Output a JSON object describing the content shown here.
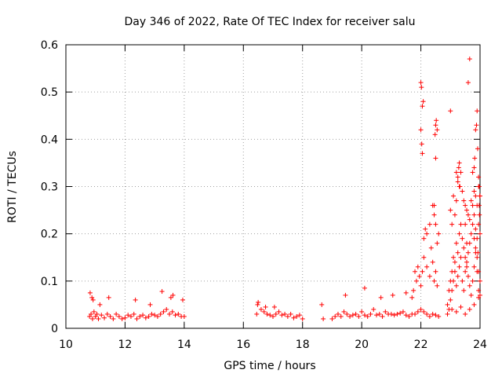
{
  "chart_data": {
    "type": "scatter",
    "title": "Day 346 of 2022, Rate Of TEC Index for receiver salu",
    "xlabel": "GPS time / hours",
    "ylabel": "ROTI / TECUs",
    "xlim": [
      10,
      24
    ],
    "ylim": [
      0,
      0.6
    ],
    "xticks": [
      10,
      12,
      14,
      16,
      18,
      20,
      22,
      24
    ],
    "yticks": [
      0,
      0.1,
      0.2,
      0.3,
      0.4,
      0.5,
      0.6
    ],
    "xtick_labels": [
      "10",
      "12",
      "14",
      "16",
      "18",
      "20",
      "22",
      "24"
    ],
    "ytick_labels": [
      "0",
      "0.1",
      "0.2",
      "0.3",
      "0.4",
      "0.5",
      "0.6"
    ],
    "grid": true,
    "marker": "+",
    "series": [
      {
        "name": "ROTI",
        "color": "#ff0000",
        "x": [
          10.8,
          10.85,
          10.9,
          10.95,
          11.0,
          11.05,
          11.1,
          11.2,
          11.3,
          11.4,
          11.5,
          11.6,
          11.7,
          11.8,
          11.9,
          12.0,
          12.1,
          12.2,
          12.3,
          12.4,
          12.5,
          12.6,
          12.7,
          12.8,
          12.9,
          13.0,
          13.1,
          13.2,
          13.3,
          13.4,
          13.5,
          13.6,
          13.7,
          13.8,
          13.9,
          14.0,
          10.82,
          10.88,
          10.92,
          11.15,
          11.45,
          12.35,
          12.85,
          13.25,
          13.55,
          13.62,
          13.95,
          16.45,
          16.5,
          16.6,
          16.7,
          16.8,
          16.9,
          17.0,
          17.1,
          17.2,
          17.3,
          17.4,
          17.5,
          17.6,
          17.7,
          17.8,
          17.9,
          18.0,
          16.48,
          16.75,
          17.05,
          18.65,
          18.7,
          19.0,
          19.1,
          19.2,
          19.3,
          19.4,
          19.5,
          19.6,
          19.7,
          19.8,
          19.9,
          20.0,
          20.1,
          20.2,
          20.3,
          20.4,
          20.5,
          20.6,
          20.7,
          20.8,
          20.9,
          21.0,
          21.1,
          21.2,
          21.3,
          21.4,
          21.5,
          21.6,
          21.7,
          21.8,
          21.9,
          22.0,
          22.1,
          22.2,
          22.3,
          22.4,
          22.5,
          22.6,
          19.45,
          20.1,
          20.65,
          21.05,
          21.5,
          21.7,
          21.75,
          21.8,
          21.85,
          21.9,
          21.95,
          22.0,
          22.05,
          22.1,
          22.2,
          22.3,
          22.4,
          22.45,
          22.5,
          22.55,
          22.0,
          22.02,
          22.05,
          22.08,
          22.0,
          22.03,
          22.05,
          22.5,
          22.52,
          22.55,
          22.5,
          22.48,
          22.45,
          22.4,
          22.45,
          22.5,
          22.55,
          22.6,
          22.2,
          22.3,
          22.35,
          22.1,
          22.15,
          22.9,
          22.95,
          23.0,
          23.05,
          23.1,
          23.15,
          23.2,
          23.25,
          23.3,
          23.35,
          23.4,
          23.45,
          23.5,
          23.55,
          23.6,
          23.65,
          23.7,
          23.75,
          23.8,
          23.85,
          23.9,
          23.95,
          24.0,
          22.95,
          23.0,
          23.05,
          23.1,
          23.15,
          23.2,
          23.25,
          23.3,
          23.35,
          23.4,
          23.45,
          23.5,
          23.55,
          23.6,
          23.65,
          23.7,
          23.75,
          23.8,
          23.85,
          23.9,
          23.95,
          24.0,
          23.0,
          23.1,
          23.2,
          23.3,
          23.4,
          23.5,
          23.6,
          23.7,
          23.8,
          23.9,
          24.0,
          23.05,
          23.15,
          23.25,
          23.35,
          23.45,
          23.55,
          23.65,
          23.75,
          23.85,
          23.95,
          23.0,
          23.2,
          23.3,
          23.25,
          23.28,
          23.32,
          23.6,
          23.65,
          23.75,
          23.8,
          23.82,
          23.85,
          23.9,
          23.88,
          23.92,
          23.95,
          23.97,
          23.99,
          23.5,
          23.55,
          23.8,
          23.85,
          23.9,
          23.95,
          23.93,
          24.0,
          23.98,
          23.97,
          22.9,
          23.05,
          23.2,
          23.35,
          23.5,
          23.65,
          23.8,
          23.95
        ],
        "y": [
          0.025,
          0.03,
          0.02,
          0.035,
          0.025,
          0.03,
          0.02,
          0.028,
          0.022,
          0.03,
          0.025,
          0.02,
          0.03,
          0.025,
          0.02,
          0.022,
          0.028,
          0.025,
          0.03,
          0.02,
          0.025,
          0.028,
          0.022,
          0.025,
          0.03,
          0.028,
          0.025,
          0.03,
          0.035,
          0.04,
          0.03,
          0.035,
          0.028,
          0.03,
          0.025,
          0.025,
          0.075,
          0.065,
          0.06,
          0.05,
          0.065,
          0.06,
          0.05,
          0.078,
          0.065,
          0.07,
          0.06,
          0.03,
          0.055,
          0.04,
          0.035,
          0.03,
          0.028,
          0.025,
          0.03,
          0.035,
          0.028,
          0.03,
          0.025,
          0.03,
          0.022,
          0.025,
          0.028,
          0.02,
          0.05,
          0.045,
          0.045,
          0.05,
          0.02,
          0.02,
          0.025,
          0.03,
          0.025,
          0.035,
          0.03,
          0.025,
          0.028,
          0.03,
          0.025,
          0.035,
          0.028,
          0.025,
          0.03,
          0.04,
          0.028,
          0.03,
          0.025,
          0.035,
          0.03,
          0.03,
          0.028,
          0.03,
          0.032,
          0.035,
          0.028,
          0.025,
          0.03,
          0.03,
          0.035,
          0.04,
          0.035,
          0.03,
          0.025,
          0.03,
          0.028,
          0.025,
          0.07,
          0.085,
          0.065,
          0.07,
          0.075,
          0.065,
          0.08,
          0.12,
          0.1,
          0.13,
          0.11,
          0.09,
          0.12,
          0.15,
          0.13,
          0.11,
          0.14,
          0.1,
          0.12,
          0.09,
          0.52,
          0.51,
          0.47,
          0.48,
          0.42,
          0.39,
          0.37,
          0.43,
          0.44,
          0.42,
          0.36,
          0.41,
          0.26,
          0.26,
          0.24,
          0.22,
          0.18,
          0.2,
          0.2,
          0.22,
          0.17,
          0.19,
          0.21,
          0.05,
          0.08,
          0.1,
          0.12,
          0.15,
          0.14,
          0.18,
          0.16,
          0.2,
          0.22,
          0.19,
          0.17,
          0.15,
          0.13,
          0.16,
          0.18,
          0.2,
          0.22,
          0.19,
          0.17,
          0.15,
          0.12,
          0.1,
          0.04,
          0.06,
          0.08,
          0.1,
          0.12,
          0.09,
          0.11,
          0.13,
          0.15,
          0.1,
          0.08,
          0.12,
          0.14,
          0.11,
          0.09,
          0.07,
          0.1,
          0.13,
          0.16,
          0.12,
          0.08,
          0.07,
          0.25,
          0.28,
          0.27,
          0.3,
          0.29,
          0.26,
          0.24,
          0.27,
          0.29,
          0.26,
          0.28,
          0.22,
          0.24,
          0.31,
          0.33,
          0.27,
          0.25,
          0.23,
          0.26,
          0.28,
          0.3,
          0.46,
          0.33,
          0.35,
          0.32,
          0.34,
          0.3,
          0.52,
          0.57,
          0.33,
          0.34,
          0.36,
          0.42,
          0.46,
          0.43,
          0.38,
          0.32,
          0.3,
          0.28,
          0.22,
          0.18,
          0.24,
          0.21,
          0.19,
          0.22,
          0.16,
          0.2,
          0.24,
          0.26,
          0.03,
          0.04,
          0.035,
          0.045,
          0.03,
          0.04,
          0.05,
          0.065
        ]
      }
    ]
  }
}
